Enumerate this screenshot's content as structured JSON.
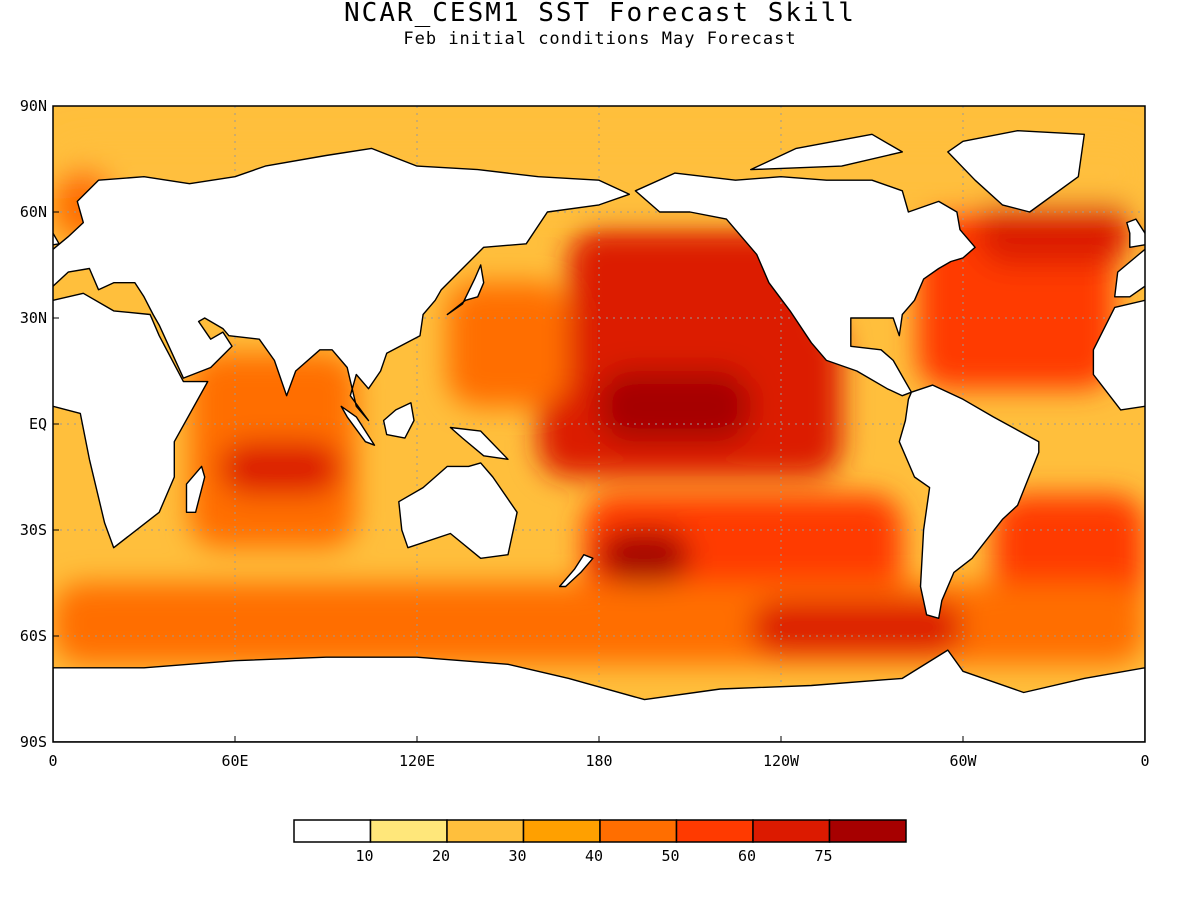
{
  "title": "NCAR_CESM1 SST Forecast Skill",
  "subtitle": "Feb initial conditions  May Forecast",
  "map": {
    "projection": "cylindrical equidistant",
    "lon_range": [
      0,
      360
    ],
    "lat_range": [
      -90,
      90
    ],
    "grid": true,
    "lat_ticks": [
      {
        "value": 90,
        "label": "90N"
      },
      {
        "value": 60,
        "label": "60N"
      },
      {
        "value": 30,
        "label": "30N"
      },
      {
        "value": 0,
        "label": "EQ"
      },
      {
        "value": -30,
        "label": "30S"
      },
      {
        "value": -60,
        "label": "60S"
      },
      {
        "value": -90,
        "label": "90S"
      }
    ],
    "lon_ticks": [
      {
        "value": 0,
        "label": "0"
      },
      {
        "value": 60,
        "label": "60E"
      },
      {
        "value": 120,
        "label": "120E"
      },
      {
        "value": 180,
        "label": "180"
      },
      {
        "value": 240,
        "label": "120W"
      },
      {
        "value": 300,
        "label": "60W"
      },
      {
        "value": 360,
        "label": "0"
      }
    ]
  },
  "colorbar": {
    "colors": [
      "#ffffff",
      "#ffe77a",
      "#ffbf3c",
      "#ffa000",
      "#ff6e00",
      "#ff3a00",
      "#dc1a00",
      "#a60000"
    ],
    "labels": [
      "10",
      "20",
      "30",
      "40",
      "50",
      "60",
      "75"
    ]
  },
  "regions": [
    {
      "name": "central-equatorial-pacific",
      "lon": [
        160,
        260
      ],
      "lat": [
        -15,
        30
      ],
      "level": 6
    },
    {
      "name": "north-pacific",
      "lon": [
        170,
        255
      ],
      "lat": [
        20,
        55
      ],
      "level": 6
    },
    {
      "name": "central-pacific-core",
      "lon": [
        180,
        230
      ],
      "lat": [
        -5,
        15
      ],
      "level": 7
    },
    {
      "name": "south-pacific",
      "lon": [
        175,
        280
      ],
      "lat": [
        -60,
        -20
      ],
      "level": 5
    },
    {
      "name": "south-pacific-core",
      "lon": [
        180,
        210
      ],
      "lat": [
        -45,
        -30
      ],
      "level": 7
    },
    {
      "name": "western-pacific",
      "lon": [
        130,
        170
      ],
      "lat": [
        5,
        40
      ],
      "level": 4
    },
    {
      "name": "tropical-indian-ocean",
      "lon": [
        45,
        100
      ],
      "lat": [
        -35,
        20
      ],
      "level": 4
    },
    {
      "name": "south-indian-ocean-core",
      "lon": [
        55,
        95
      ],
      "lat": [
        -20,
        -5
      ],
      "level": 6
    },
    {
      "name": "north-atlantic",
      "lon": [
        285,
        350
      ],
      "lat": [
        10,
        60
      ],
      "level": 5
    },
    {
      "name": "subpolar-atlantic",
      "lon": [
        305,
        355
      ],
      "lat": [
        45,
        65
      ],
      "level": 6
    },
    {
      "name": "south-atlantic",
      "lon": [
        310,
        360
      ],
      "lat": [
        -55,
        -20
      ],
      "level": 5
    },
    {
      "name": "southern-ocean-belt",
      "lon": [
        0,
        360
      ],
      "lat": [
        -68,
        -45
      ],
      "level": 4
    },
    {
      "name": "southern-ocean-pacific",
      "lon": [
        230,
        300
      ],
      "lat": [
        -65,
        -50
      ],
      "level": 6
    },
    {
      "name": "arctic-margins",
      "lon": [
        0,
        360
      ],
      "lat": [
        62,
        80
      ],
      "level": 2
    },
    {
      "name": "north-sea",
      "lon": [
        0,
        20
      ],
      "lat": [
        52,
        72
      ],
      "level": 4
    }
  ],
  "land": [
    {
      "name": "africa",
      "points": [
        [
          -17,
          21
        ],
        [
          -10,
          33
        ],
        [
          0,
          35
        ],
        [
          10,
          37
        ],
        [
          20,
          32
        ],
        [
          32,
          31
        ],
        [
          35,
          25
        ],
        [
          43,
          12
        ],
        [
          51,
          12
        ],
        [
          40,
          -5
        ],
        [
          40,
          -15
        ],
        [
          35,
          -25
        ],
        [
          20,
          -35
        ],
        [
          17,
          -28
        ],
        [
          12,
          -10
        ],
        [
          9,
          3
        ],
        [
          0,
          5
        ],
        [
          -8,
          4
        ],
        [
          -17,
          14
        ]
      ]
    },
    {
      "name": "eurasia",
      "points": [
        [
          -10,
          36
        ],
        [
          -9,
          43
        ],
        [
          -2,
          48
        ],
        [
          5,
          53
        ],
        [
          10,
          57
        ],
        [
          8,
          63
        ],
        [
          15,
          69
        ],
        [
          30,
          70
        ],
        [
          45,
          68
        ],
        [
          60,
          70
        ],
        [
          70,
          73
        ],
        [
          90,
          76
        ],
        [
          105,
          78
        ],
        [
          120,
          73
        ],
        [
          140,
          72
        ],
        [
          160,
          70
        ],
        [
          180,
          69
        ],
        [
          190,
          65
        ],
        [
          180,
          62
        ],
        [
          163,
          60
        ],
        [
          156,
          51
        ],
        [
          142,
          50
        ],
        [
          135,
          44
        ],
        [
          128,
          38
        ],
        [
          126,
          35
        ],
        [
          122,
          31
        ],
        [
          121,
          25
        ],
        [
          110,
          20
        ],
        [
          108,
          15
        ],
        [
          104,
          10
        ],
        [
          100,
          14
        ],
        [
          98,
          8
        ],
        [
          104,
          1
        ],
        [
          100,
          5
        ],
        [
          97,
          16
        ],
        [
          92,
          21
        ],
        [
          88,
          21
        ],
        [
          80,
          15
        ],
        [
          77,
          8
        ],
        [
          73,
          18
        ],
        [
          68,
          24
        ],
        [
          58,
          25
        ],
        [
          56,
          27
        ],
        [
          50,
          30
        ],
        [
          48,
          29
        ],
        [
          52,
          24
        ],
        [
          56,
          26
        ],
        [
          59,
          22
        ],
        [
          52,
          16
        ],
        [
          43,
          13
        ],
        [
          35,
          28
        ],
        [
          33,
          31
        ],
        [
          30,
          36
        ],
        [
          27,
          40
        ],
        [
          20,
          40
        ],
        [
          15,
          38
        ],
        [
          12,
          44
        ],
        [
          5,
          43
        ],
        [
          0,
          39
        ],
        [
          -5,
          36
        ]
      ]
    },
    {
      "name": "north-america",
      "points": [
        [
          192,
          66
        ],
        [
          200,
          60
        ],
        [
          210,
          60
        ],
        [
          222,
          58
        ],
        [
          232,
          48
        ],
        [
          236,
          40
        ],
        [
          243,
          32
        ],
        [
          250,
          23
        ],
        [
          255,
          18
        ],
        [
          265,
          15
        ],
        [
          275,
          10
        ],
        [
          280,
          8
        ],
        [
          283,
          9
        ],
        [
          277,
          18
        ],
        [
          273,
          21
        ],
        [
          263,
          22
        ],
        [
          263,
          30
        ],
        [
          277,
          30
        ],
        [
          279,
          25
        ],
        [
          280,
          31
        ],
        [
          284,
          35
        ],
        [
          287,
          41
        ],
        [
          292,
          44
        ],
        [
          296,
          46
        ],
        [
          300,
          47
        ],
        [
          304,
          50
        ],
        [
          299,
          55
        ],
        [
          298,
          60
        ],
        [
          292,
          63
        ],
        [
          282,
          60
        ],
        [
          280,
          66
        ],
        [
          270,
          69
        ],
        [
          255,
          69
        ],
        [
          240,
          70
        ],
        [
          225,
          69
        ],
        [
          205,
          71
        ]
      ]
    },
    {
      "name": "south-america",
      "points": [
        [
          283,
          9
        ],
        [
          290,
          11
        ],
        [
          300,
          7
        ],
        [
          310,
          2
        ],
        [
          325,
          -5
        ],
        [
          325,
          -8
        ],
        [
          318,
          -23
        ],
        [
          313,
          -27
        ],
        [
          303,
          -38
        ],
        [
          297,
          -42
        ],
        [
          293,
          -50
        ],
        [
          292,
          -55
        ],
        [
          288,
          -54
        ],
        [
          286,
          -46
        ],
        [
          287,
          -30
        ],
        [
          289,
          -18
        ],
        [
          284,
          -15
        ],
        [
          279,
          -5
        ],
        [
          281,
          1
        ],
        [
          282,
          7
        ]
      ]
    },
    {
      "name": "australia",
      "points": [
        [
          114,
          -22
        ],
        [
          122,
          -18
        ],
        [
          130,
          -12
        ],
        [
          137,
          -12
        ],
        [
          141,
          -11
        ],
        [
          145,
          -15
        ],
        [
          153,
          -25
        ],
        [
          150,
          -37
        ],
        [
          141,
          -38
        ],
        [
          131,
          -31
        ],
        [
          117,
          -35
        ],
        [
          115,
          -30
        ]
      ]
    },
    {
      "name": "greenland",
      "points": [
        [
          300,
          80
        ],
        [
          318,
          83
        ],
        [
          340,
          82
        ],
        [
          338,
          70
        ],
        [
          322,
          60
        ],
        [
          313,
          62
        ],
        [
          304,
          69
        ],
        [
          295,
          77
        ]
      ]
    },
    {
      "name": "antarctica",
      "points": [
        [
          0,
          -69
        ],
        [
          30,
          -69
        ],
        [
          60,
          -67
        ],
        [
          90,
          -66
        ],
        [
          120,
          -66
        ],
        [
          150,
          -68
        ],
        [
          170,
          -72
        ],
        [
          195,
          -78
        ],
        [
          220,
          -75
        ],
        [
          250,
          -74
        ],
        [
          280,
          -72
        ],
        [
          295,
          -64
        ],
        [
          300,
          -70
        ],
        [
          320,
          -76
        ],
        [
          340,
          -72
        ],
        [
          360,
          -69
        ],
        [
          360,
          -90
        ],
        [
          0,
          -90
        ]
      ]
    },
    {
      "name": "borneo",
      "points": [
        [
          109,
          1
        ],
        [
          113,
          4
        ],
        [
          118,
          6
        ],
        [
          119,
          1
        ],
        [
          116,
          -4
        ],
        [
          110,
          -3
        ]
      ]
    },
    {
      "name": "sumatra",
      "points": [
        [
          95,
          5
        ],
        [
          100,
          2
        ],
        [
          106,
          -6
        ],
        [
          103,
          -5
        ],
        [
          97,
          2
        ]
      ]
    },
    {
      "name": "new-guinea",
      "points": [
        [
          131,
          -1
        ],
        [
          141,
          -2
        ],
        [
          150,
          -10
        ],
        [
          142,
          -9
        ],
        [
          135,
          -4
        ]
      ]
    },
    {
      "name": "madagascar",
      "points": [
        [
          44,
          -25
        ],
        [
          47,
          -25
        ],
        [
          50,
          -15
        ],
        [
          49,
          -12
        ],
        [
          44,
          -17
        ]
      ]
    },
    {
      "name": "japan",
      "points": [
        [
          130,
          31
        ],
        [
          136,
          35
        ],
        [
          140,
          36
        ],
        [
          142,
          40
        ],
        [
          141,
          45
        ],
        [
          139,
          41
        ],
        [
          135,
          34
        ]
      ]
    },
    {
      "name": "great-britain",
      "points": [
        [
          -5,
          50
        ],
        [
          2,
          51
        ],
        [
          0,
          54
        ],
        [
          -3,
          58
        ],
        [
          -6,
          57
        ],
        [
          -5,
          54
        ]
      ]
    },
    {
      "name": "new-zealand",
      "points": [
        [
          167,
          -46
        ],
        [
          172,
          -41
        ],
        [
          175,
          -37
        ],
        [
          178,
          -38
        ],
        [
          174,
          -42
        ],
        [
          169,
          -46
        ]
      ]
    },
    {
      "name": "arctic-islands",
      "points": [
        [
          230,
          72
        ],
        [
          260,
          73
        ],
        [
          280,
          77
        ],
        [
          270,
          82
        ],
        [
          245,
          78
        ]
      ]
    }
  ]
}
